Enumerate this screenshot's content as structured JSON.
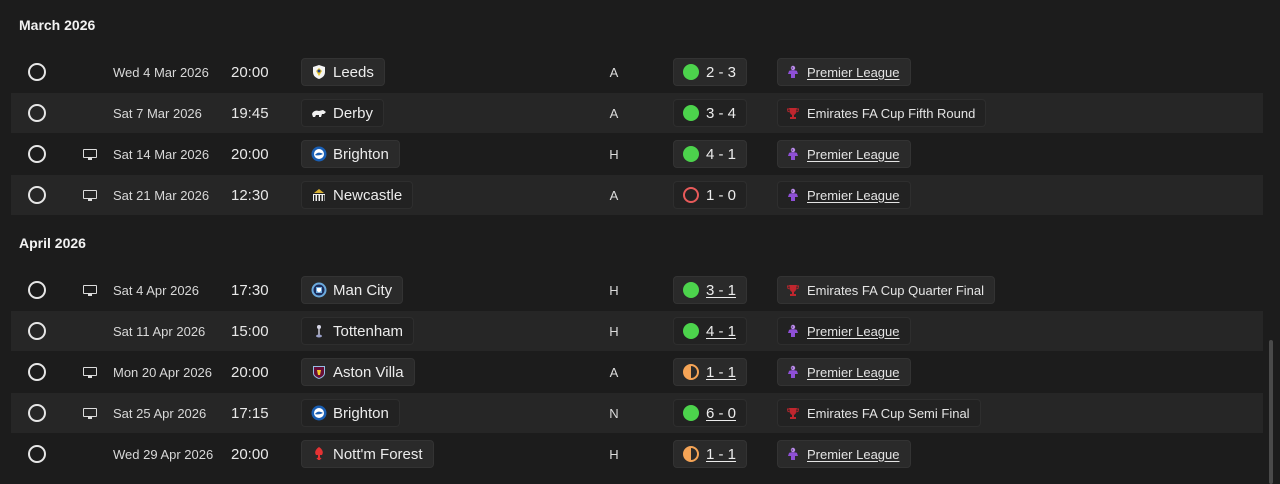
{
  "colors": {
    "win": "#4cd34c",
    "loss": "#e85a5a",
    "draw": "#f5a456",
    "premier_league": "#8e4fd6",
    "fa_cup": "#c0262e"
  },
  "months": [
    {
      "title": "March 2026",
      "fixtures": [
        {
          "tv": false,
          "date": "Wed 4 Mar 2026",
          "time": "20:00",
          "team": "Leeds",
          "crest": "leeds-crest",
          "venue": "A",
          "result": "win",
          "score": "2 - 3",
          "score_link": false,
          "competition": "Premier League",
          "comp_type": "pl"
        },
        {
          "tv": false,
          "date": "Sat 7 Mar 2026",
          "time": "19:45",
          "team": "Derby",
          "crest": "derby-crest",
          "venue": "A",
          "result": "win",
          "score": "3 - 4",
          "score_link": false,
          "competition": "Emirates FA Cup Fifth Round",
          "comp_type": "fa"
        },
        {
          "tv": true,
          "date": "Sat 14 Mar 2026",
          "time": "20:00",
          "team": "Brighton",
          "crest": "brighton-crest",
          "venue": "H",
          "result": "win",
          "score": "4 - 1",
          "score_link": false,
          "competition": "Premier League",
          "comp_type": "pl"
        },
        {
          "tv": true,
          "date": "Sat 21 Mar 2026",
          "time": "12:30",
          "team": "Newcastle",
          "crest": "newcastle-crest",
          "venue": "A",
          "result": "loss",
          "score": "1 - 0",
          "score_link": false,
          "competition": "Premier League",
          "comp_type": "pl"
        }
      ]
    },
    {
      "title": "April 2026",
      "fixtures": [
        {
          "tv": true,
          "date": "Sat 4 Apr 2026",
          "time": "17:30",
          "team": "Man City",
          "crest": "man-city-crest",
          "venue": "H",
          "result": "win",
          "score": "3 - 1",
          "score_link": true,
          "competition": "Emirates FA Cup Quarter Final",
          "comp_type": "fa"
        },
        {
          "tv": false,
          "date": "Sat 11 Apr 2026",
          "time": "15:00",
          "team": "Tottenham",
          "crest": "tottenham-crest",
          "venue": "H",
          "result": "win",
          "score": "4 - 1",
          "score_link": true,
          "competition": "Premier League",
          "comp_type": "pl"
        },
        {
          "tv": true,
          "date": "Mon 20 Apr 2026",
          "time": "20:00",
          "team": "Aston Villa",
          "crest": "aston-villa-crest",
          "venue": "A",
          "result": "draw",
          "score": "1 - 1",
          "score_link": true,
          "competition": "Premier League",
          "comp_type": "pl"
        },
        {
          "tv": true,
          "date": "Sat 25 Apr 2026",
          "time": "17:15",
          "team": "Brighton",
          "crest": "brighton-crest",
          "venue": "N",
          "result": "win",
          "score": "6 - 0",
          "score_link": true,
          "competition": "Emirates FA Cup Semi Final",
          "comp_type": "fa"
        },
        {
          "tv": false,
          "date": "Wed 29 Apr 2026",
          "time": "20:00",
          "team": "Nott'm Forest",
          "crest": "nottm-forest-crest",
          "venue": "H",
          "result": "draw",
          "score": "1 - 1",
          "score_link": true,
          "competition": "Premier League",
          "comp_type": "pl"
        }
      ]
    }
  ]
}
